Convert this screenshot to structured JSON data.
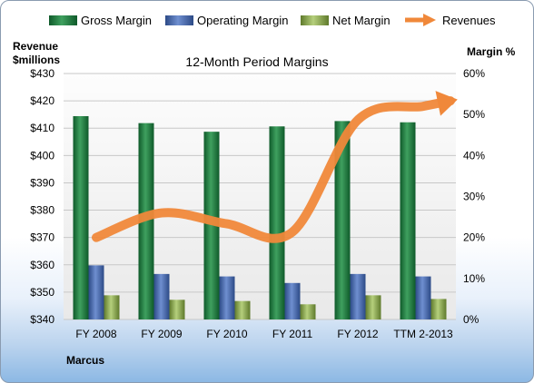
{
  "chart_data": {
    "type": "bar",
    "title": "12-Month Period Margins",
    "categories": [
      "FY 2008",
      "FY 2009",
      "FY 2010",
      "FY 2011",
      "FY 2012",
      "TTM 2-2013"
    ],
    "series": [
      {
        "name": "Gross Margin",
        "axis": "right",
        "color": "#1f7a3e",
        "values": [
          49.6,
          47.9,
          45.8,
          47.1,
          48.4,
          48.1
        ]
      },
      {
        "name": "Operating Margin",
        "axis": "right",
        "color": "#4a6fb0",
        "values": [
          13.2,
          11.1,
          10.5,
          8.9,
          11.1,
          10.5
        ]
      },
      {
        "name": "Net Margin",
        "axis": "right",
        "color": "#8fae4c",
        "values": [
          5.9,
          4.8,
          4.5,
          3.7,
          5.9,
          5.0
        ]
      }
    ],
    "line_series": {
      "name": "Revenues",
      "axis": "left",
      "color": "#f0883a",
      "values": [
        370,
        379,
        375,
        372,
        413,
        418
      ]
    },
    "left_axis": {
      "label_line1": "Revenue",
      "label_line2": "$millions",
      "ticks": [
        "$430",
        "$420",
        "$410",
        "$400",
        "$390",
        "$380",
        "$370",
        "$360",
        "$350",
        "$340"
      ],
      "min": 340,
      "max": 430
    },
    "right_axis": {
      "label": "Margin  %",
      "ticks": [
        "60%",
        "50%",
        "40%",
        "30%",
        "20%",
        "10%",
        "0%"
      ],
      "min": 0,
      "max": 60
    },
    "legend_position": "top",
    "grid": true
  },
  "legend": {
    "gross": "Gross Margin",
    "operating": "Operating Margin",
    "net": "Net Margin",
    "revenues": "Revenues"
  },
  "watermark": "Marcus"
}
